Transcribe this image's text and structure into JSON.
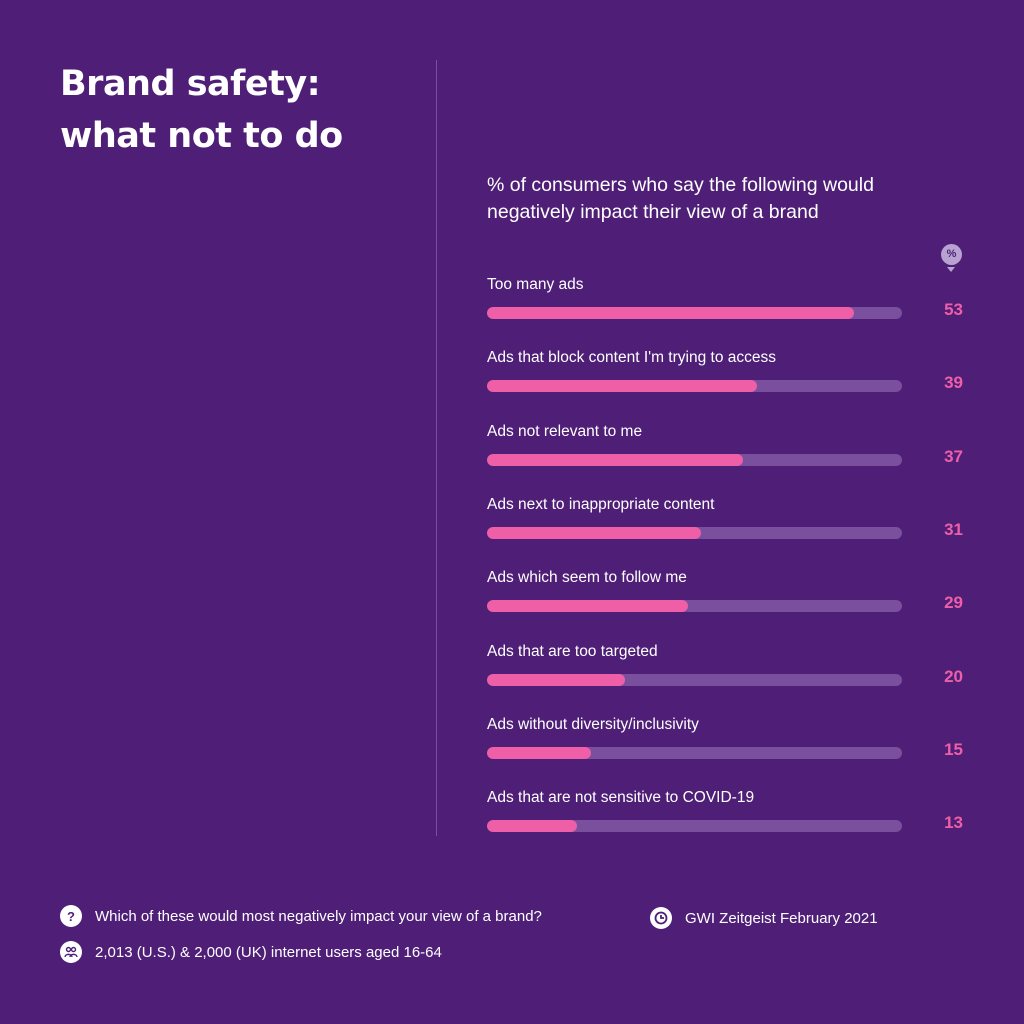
{
  "title": {
    "line1": "Brand safety:",
    "line2": "what not to do"
  },
  "subtitle": {
    "line1": "% of consumers who say the following would",
    "line2": "negatively impact their view of a brand"
  },
  "value_unit_badge": "%",
  "colors": {
    "background": "#4f1f77",
    "bar_fill": "#ee5fa7",
    "bar_track": "#7a4f9e",
    "value_text": "#ee5fa7"
  },
  "chart_data": {
    "type": "bar",
    "orientation": "horizontal",
    "categories": [
      "Too many ads",
      "Ads that block content I'm trying to access",
      "Ads not relevant to me",
      "Ads next to inappropriate content",
      "Ads which seem to follow me",
      "Ads that are too targeted",
      "Ads without diversity/inclusivity",
      "Ads that are not sensitive to COVID-19"
    ],
    "values": [
      53,
      39,
      37,
      31,
      29,
      20,
      15,
      13
    ],
    "xlim": [
      0,
      60
    ],
    "grid": false,
    "legend": "none"
  },
  "footer": {
    "question_icon": "question-icon",
    "question": "Which of these would most negatively impact your view of a brand?",
    "source_icon": "gwi-logo-icon",
    "source": "GWI Zeitgeist February 2021",
    "audience_icon": "people-icon",
    "audience": "2,013 (U.S.) & 2,000 (UK) internet users aged 16-64"
  }
}
